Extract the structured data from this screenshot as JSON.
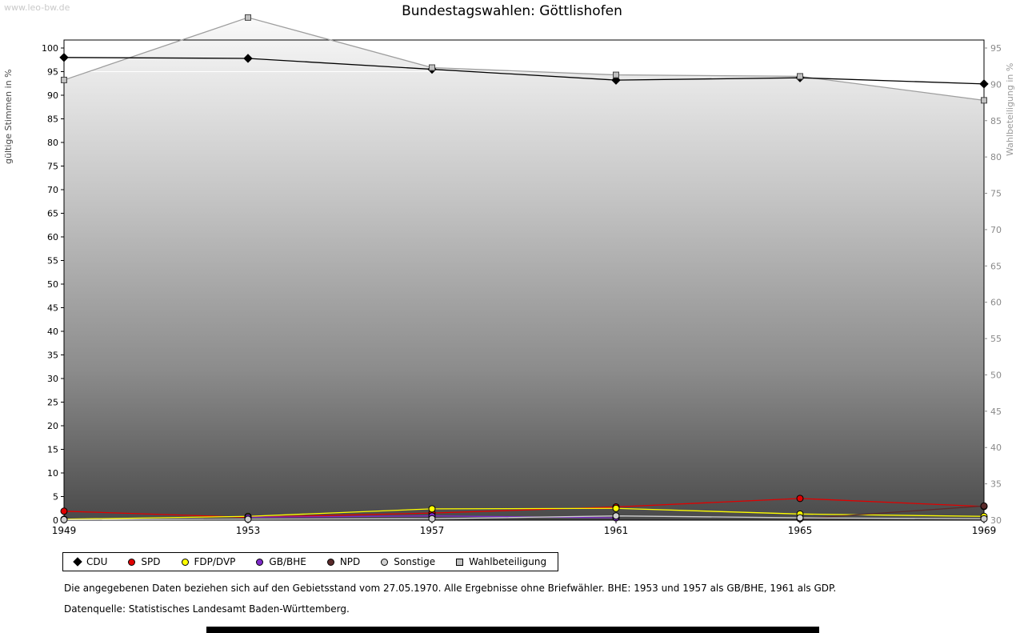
{
  "watermark": "www.leo-bw.de",
  "footnotes": [
    "Die angegebenen Daten beziehen sich auf den Gebietsstand vom 27.05.1970. Alle Ergebnisse ohne Briefwähler. BHE: 1953 und 1957 als GB/BHE, 1961 als GDP.",
    "Datenquelle: Statistisches Landesamt Baden-Württemberg."
  ],
  "chart_data": {
    "type": "line",
    "title": "Bundestagswahlen: Göttlishofen",
    "x": [
      1949,
      1953,
      1957,
      1961,
      1965,
      1969
    ],
    "left_axis": {
      "label": "gültige Stimmen in %",
      "min": 0,
      "max": 100,
      "tick_step": 5
    },
    "right_axis": {
      "label": "Wahlbeteiligung in %",
      "min": 30,
      "max": 95,
      "tick_step": 5
    },
    "gridlines": {
      "left_values": [
        95
      ],
      "color": "#ffffff"
    },
    "legend_position": "bottom",
    "series": [
      {
        "name": "CDU",
        "axis": "left",
        "color": "#000000",
        "marker": "diamond",
        "values": [
          98.0,
          97.8,
          95.5,
          93.2,
          93.7,
          92.4
        ]
      },
      {
        "name": "SPD",
        "axis": "left",
        "color": "#e00000",
        "marker": "circle",
        "values": [
          1.9,
          0.6,
          1.5,
          2.8,
          4.6,
          2.9
        ]
      },
      {
        "name": "FDP/DVP",
        "axis": "left",
        "color": "#ffff00",
        "marker": "circle",
        "values": [
          0.2,
          0.8,
          2.4,
          2.5,
          1.3,
          0.8
        ]
      },
      {
        "name": "GB/BHE",
        "axis": "left",
        "color": "#7d2ac8",
        "marker": "circle",
        "values": [
          null,
          0.6,
          0.9,
          0.5,
          null,
          null
        ]
      },
      {
        "name": "NPD",
        "axis": "left",
        "color": "#5a2a2a",
        "marker": "circle",
        "values": [
          null,
          null,
          null,
          null,
          0.3,
          3.0
        ]
      },
      {
        "name": "Sonstige",
        "axis": "left",
        "color": "#d0d0d0",
        "marker": "circle",
        "values": [
          0.1,
          0.2,
          0.3,
          0.9,
          0.5,
          0.3
        ]
      },
      {
        "name": "Wahlbeteiligung",
        "axis": "right",
        "color": "#9e9e9e",
        "marker": "square",
        "area": true,
        "values": [
          90.6,
          99.2,
          92.3,
          91.3,
          91.1,
          87.8
        ]
      }
    ]
  }
}
